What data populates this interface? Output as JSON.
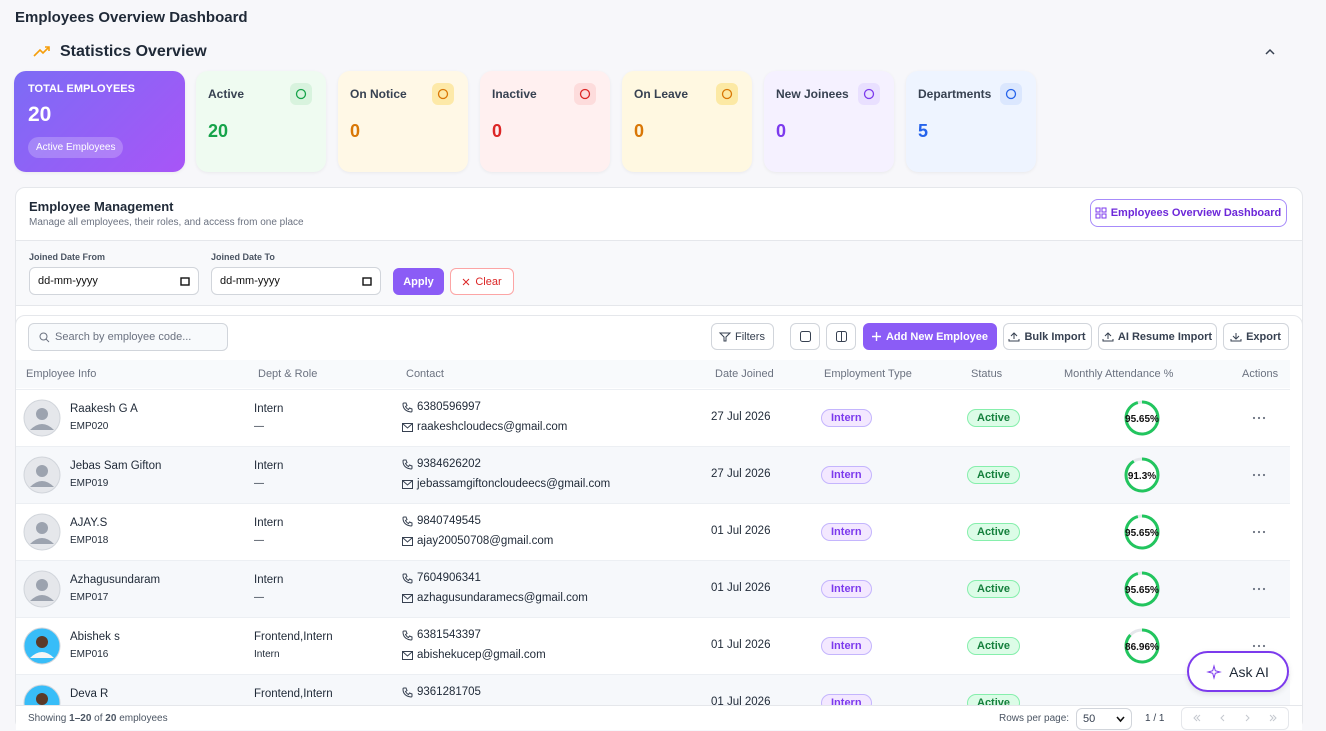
{
  "header": {
    "title": "Employees Overview Dashboard"
  },
  "stats": {
    "title": "Statistics Overview",
    "cards": [
      {
        "label": "TOTAL EMPLOYEES",
        "value": 20,
        "badge": "Active Employees"
      },
      {
        "label": "Active",
        "value": 20
      },
      {
        "label": "On Notice",
        "value": 0
      },
      {
        "label": "Inactive",
        "value": 0
      },
      {
        "label": "On Leave",
        "value": 0
      },
      {
        "label": "New Joinees",
        "value": 0
      },
      {
        "label": "Departments",
        "value": 5
      }
    ]
  },
  "management": {
    "title": "Employee Management",
    "subtitle": "Manage all employees, their roles, and access from one place",
    "dashboard_button": "Employees Overview Dashboard"
  },
  "filters": {
    "from_label": "Joined Date From",
    "to_label": "Joined Date To",
    "from_placeholder": "dd-mm-yyyy",
    "to_placeholder": "dd-mm-yyyy",
    "apply": "Apply",
    "clear": "Clear"
  },
  "toolbar": {
    "search_placeholder": "Search by employee code...",
    "filters": "Filters",
    "add": "Add New Employee",
    "bulk_import": "Bulk Import",
    "ai_import": "AI Resume Import",
    "export": "Export"
  },
  "table": {
    "columns": [
      "Employee Info",
      "Dept & Role",
      "Contact",
      "Date Joined",
      "Employment Type",
      "Status",
      "Monthly Attendance %",
      "Actions"
    ],
    "rows": [
      {
        "name": "Raakesh G A",
        "code": "EMP020",
        "dept": "Intern",
        "role": "—",
        "phone": "6380596997",
        "email": "raakeshcloudecs@gmail.com",
        "joined": "27 Jul 2026",
        "type": "Intern",
        "status": "Active",
        "attendance": {
          "value": 95.65,
          "label": "95.65%"
        }
      },
      {
        "name": "Jebas Sam Gifton",
        "code": "EMP019",
        "dept": "Intern",
        "role": "—",
        "phone": "9384626202",
        "email": "jebassamgiftoncloudeecs@gmail.com",
        "joined": "27 Jul 2026",
        "type": "Intern",
        "status": "Active",
        "attendance": {
          "value": 91.3,
          "label": "91.3%"
        }
      },
      {
        "name": "AJAY.S",
        "code": "EMP018",
        "dept": "Intern",
        "role": "—",
        "phone": "9840749545",
        "email": "ajay20050708@gmail.com",
        "joined": "01 Jul 2026",
        "type": "Intern",
        "status": "Active",
        "attendance": {
          "value": 95.65,
          "label": "95.65%"
        }
      },
      {
        "name": "Azhagusundaram",
        "code": "EMP017",
        "dept": "Intern",
        "role": "—",
        "phone": "7604906341",
        "email": "azhagusundaramecs@gmail.com",
        "joined": "01 Jul 2026",
        "type": "Intern",
        "status": "Active",
        "attendance": {
          "value": 95.65,
          "label": "95.65%"
        }
      },
      {
        "name": "Abishek s",
        "code": "EMP016",
        "dept": "Frontend,Intern",
        "role": "Intern",
        "phone": "6381543397",
        "email": "abishekucep@gmail.com",
        "joined": "01 Jul 2026",
        "type": "Intern",
        "status": "Active",
        "attendance": {
          "value": 86.96,
          "label": "86.96%"
        }
      },
      {
        "name": "Deva R",
        "dept": "Frontend,Intern",
        "phone": "9361281705",
        "joined": "01 Jul 2026",
        "type": "Intern",
        "status": "Active"
      }
    ]
  },
  "footer": {
    "showing": "Showing",
    "range": "1–20",
    "of": "of",
    "total": "20",
    "suffix": "employees",
    "rows_per_page": "Rows per page:",
    "page_size": "50",
    "pages": "1 / 1"
  },
  "ask_ai": "Ask AI"
}
